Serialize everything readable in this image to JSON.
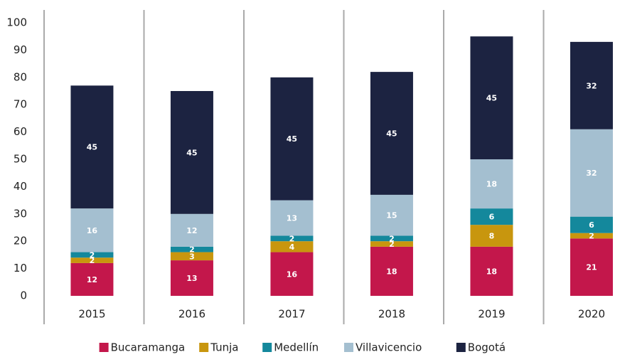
{
  "chart_data": {
    "type": "stacked_bar",
    "categories": [
      "2015",
      "2016",
      "2017",
      "2018",
      "2019",
      "2020"
    ],
    "series": [
      {
        "name": "Bucaramanga",
        "color": "#c3174b",
        "values": [
          12,
          13,
          16,
          18,
          18,
          21
        ]
      },
      {
        "name": "Tunja",
        "color": "#c8960e",
        "values": [
          2,
          3,
          4,
          2,
          8,
          2
        ]
      },
      {
        "name": "Medellín",
        "color": "#14889c",
        "values": [
          2,
          2,
          2,
          2,
          6,
          6
        ]
      },
      {
        "name": "Villavicencio",
        "color": "#a4bfd0",
        "values": [
          16,
          12,
          13,
          15,
          18,
          32
        ]
      },
      {
        "name": "Bogotá",
        "color": "#1c2341",
        "values": [
          45,
          45,
          45,
          45,
          45,
          32
        ]
      }
    ],
    "ylim": [
      0,
      100
    ],
    "yticks": [
      0,
      10,
      20,
      30,
      40,
      50,
      60,
      70,
      80,
      90,
      100
    ],
    "legend": "bottom"
  }
}
